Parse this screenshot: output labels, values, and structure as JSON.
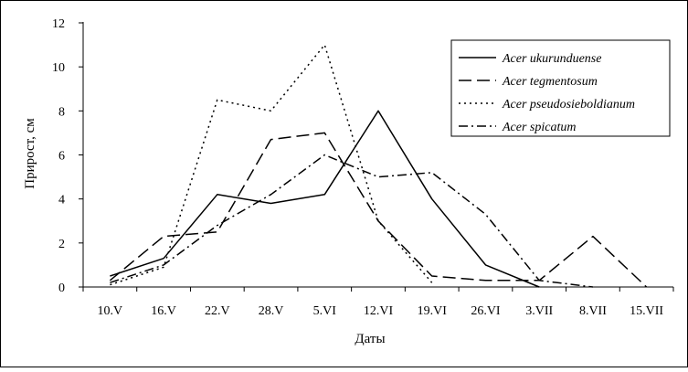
{
  "chart_data": {
    "type": "line",
    "xlabel": "Даты",
    "ylabel": "Прирост, см",
    "categories": [
      "10.V",
      "16.V",
      "22.V",
      "28.V",
      "5.VI",
      "12.VI",
      "19.VI",
      "26.VI",
      "3.VII",
      "8.VII",
      "15.VII"
    ],
    "yticks": [
      "0",
      "2",
      "4",
      "6",
      "8",
      "10",
      "12"
    ],
    "ylim": [
      0,
      12
    ],
    "grid": false,
    "legend_position": "top-right",
    "series": [
      {
        "name": "Acer ukurunduense",
        "dash": "solid",
        "values": [
          0.5,
          1.3,
          4.2,
          3.8,
          4.2,
          8.0,
          4.0,
          1.0,
          0.0,
          null,
          null
        ]
      },
      {
        "name": "Acer tegmentosum",
        "dash": "dashed",
        "values": [
          0.3,
          2.3,
          2.5,
          6.7,
          7.0,
          3.0,
          0.5,
          0.3,
          0.3,
          2.3,
          0.0
        ]
      },
      {
        "name": "Acer pseudosieboldianum",
        "dash": "dotted",
        "values": [
          0.1,
          0.9,
          8.5,
          8.0,
          11.0,
          3.0,
          0.2,
          null,
          null,
          null,
          null
        ]
      },
      {
        "name": "Acer spicatum",
        "dash": "dashdot",
        "values": [
          0.2,
          1.0,
          2.8,
          4.2,
          6.0,
          5.0,
          5.2,
          3.3,
          0.3,
          0.0,
          null
        ]
      }
    ]
  }
}
